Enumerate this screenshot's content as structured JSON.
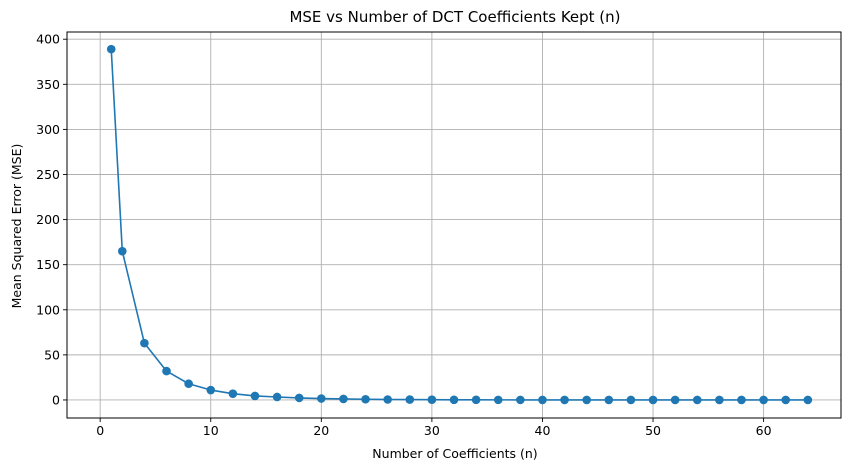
{
  "chart_data": {
    "type": "line",
    "title": "MSE vs Number of DCT Coefficients Kept (n)",
    "xlabel": "Number of Coefficients (n)",
    "ylabel": "Mean Squared Error (MSE)",
    "xlim": [
      -3,
      67
    ],
    "ylim": [
      -20,
      408
    ],
    "xticks": [
      0,
      10,
      20,
      30,
      40,
      50,
      60
    ],
    "yticks": [
      0,
      50,
      100,
      150,
      200,
      250,
      300,
      350,
      400
    ],
    "grid": true,
    "marker": "circle",
    "color": "#1f77b4",
    "series": [
      {
        "x": [
          1,
          2,
          4,
          6,
          8,
          10,
          12,
          14,
          16,
          18,
          20,
          22,
          24,
          26,
          28,
          30,
          32,
          34,
          36,
          38,
          40,
          42,
          44,
          46,
          48,
          50,
          52,
          54,
          56,
          58,
          60,
          62,
          64
        ],
        "values": [
          389,
          165,
          63,
          32,
          18,
          11,
          7,
          4.5,
          3.3,
          2.3,
          1.6,
          1.1,
          0.8,
          0.5,
          0.4,
          0.3,
          0.2,
          0.15,
          0.1,
          0.08,
          0.06,
          0.05,
          0.04,
          0.03,
          0.02,
          0.02,
          0.01,
          0.01,
          0.01,
          0,
          0,
          0,
          0
        ]
      }
    ]
  }
}
